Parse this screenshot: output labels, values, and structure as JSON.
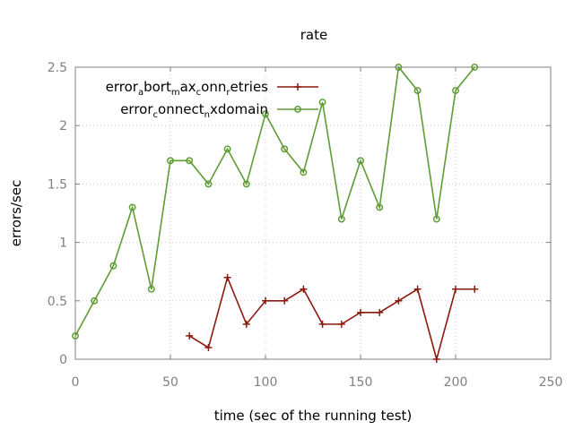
{
  "chart_data": {
    "type": "line",
    "title": "rate",
    "xlabel": "time (sec of the running test)",
    "ylabel": "errors/sec",
    "xlim": [
      0,
      250
    ],
    "ylim": [
      0,
      2.5
    ],
    "xticks": [
      0,
      50,
      100,
      150,
      200,
      250
    ],
    "yticks": [
      0,
      0.5,
      1,
      1.5,
      2,
      2.5
    ],
    "ytick_labels": [
      "0",
      "0.5",
      "1",
      "1.5",
      "2",
      "2.5"
    ],
    "grid": true,
    "legend_position": "top-left",
    "series": [
      {
        "name": "error_abort_max_conn_retries",
        "legend_parts": [
          [
            "error",
            ""
          ],
          [
            "a",
            "sub"
          ],
          [
            "bort",
            ""
          ],
          [
            "m",
            "sub"
          ],
          [
            "ax",
            ""
          ],
          [
            "c",
            "sub"
          ],
          [
            "onn",
            ""
          ],
          [
            "r",
            "sub"
          ],
          [
            "etries",
            ""
          ]
        ],
        "color": "#8b1a0e",
        "marker": "plus",
        "x": [
          60,
          70,
          80,
          90,
          100,
          110,
          120,
          130,
          140,
          150,
          160,
          170,
          180,
          190,
          200,
          210
        ],
        "y": [
          0.2,
          0.1,
          0.7,
          0.3,
          0.5,
          0.5,
          0.6,
          0.3,
          0.3,
          0.4,
          0.4,
          0.5,
          0.6,
          0.0,
          0.6,
          0.6
        ]
      },
      {
        "name": "error_connect_nxdomain",
        "legend_parts": [
          [
            "error",
            ""
          ],
          [
            "c",
            "sub"
          ],
          [
            "onnect",
            ""
          ],
          [
            "n",
            "sub"
          ],
          [
            "xdomain",
            ""
          ]
        ],
        "color": "#5e9c36",
        "marker": "circle",
        "x": [
          0,
          10,
          20,
          30,
          40,
          50,
          60,
          70,
          80,
          90,
          100,
          110,
          120,
          130,
          140,
          150,
          160,
          170,
          180,
          190,
          200,
          210
        ],
        "y": [
          0.2,
          0.5,
          0.8,
          1.3,
          0.6,
          1.7,
          1.7,
          1.5,
          1.8,
          1.5,
          2.1,
          1.8,
          1.6,
          2.2,
          1.2,
          1.7,
          1.3,
          2.5,
          2.3,
          1.2,
          2.3,
          2.5
        ]
      }
    ]
  }
}
